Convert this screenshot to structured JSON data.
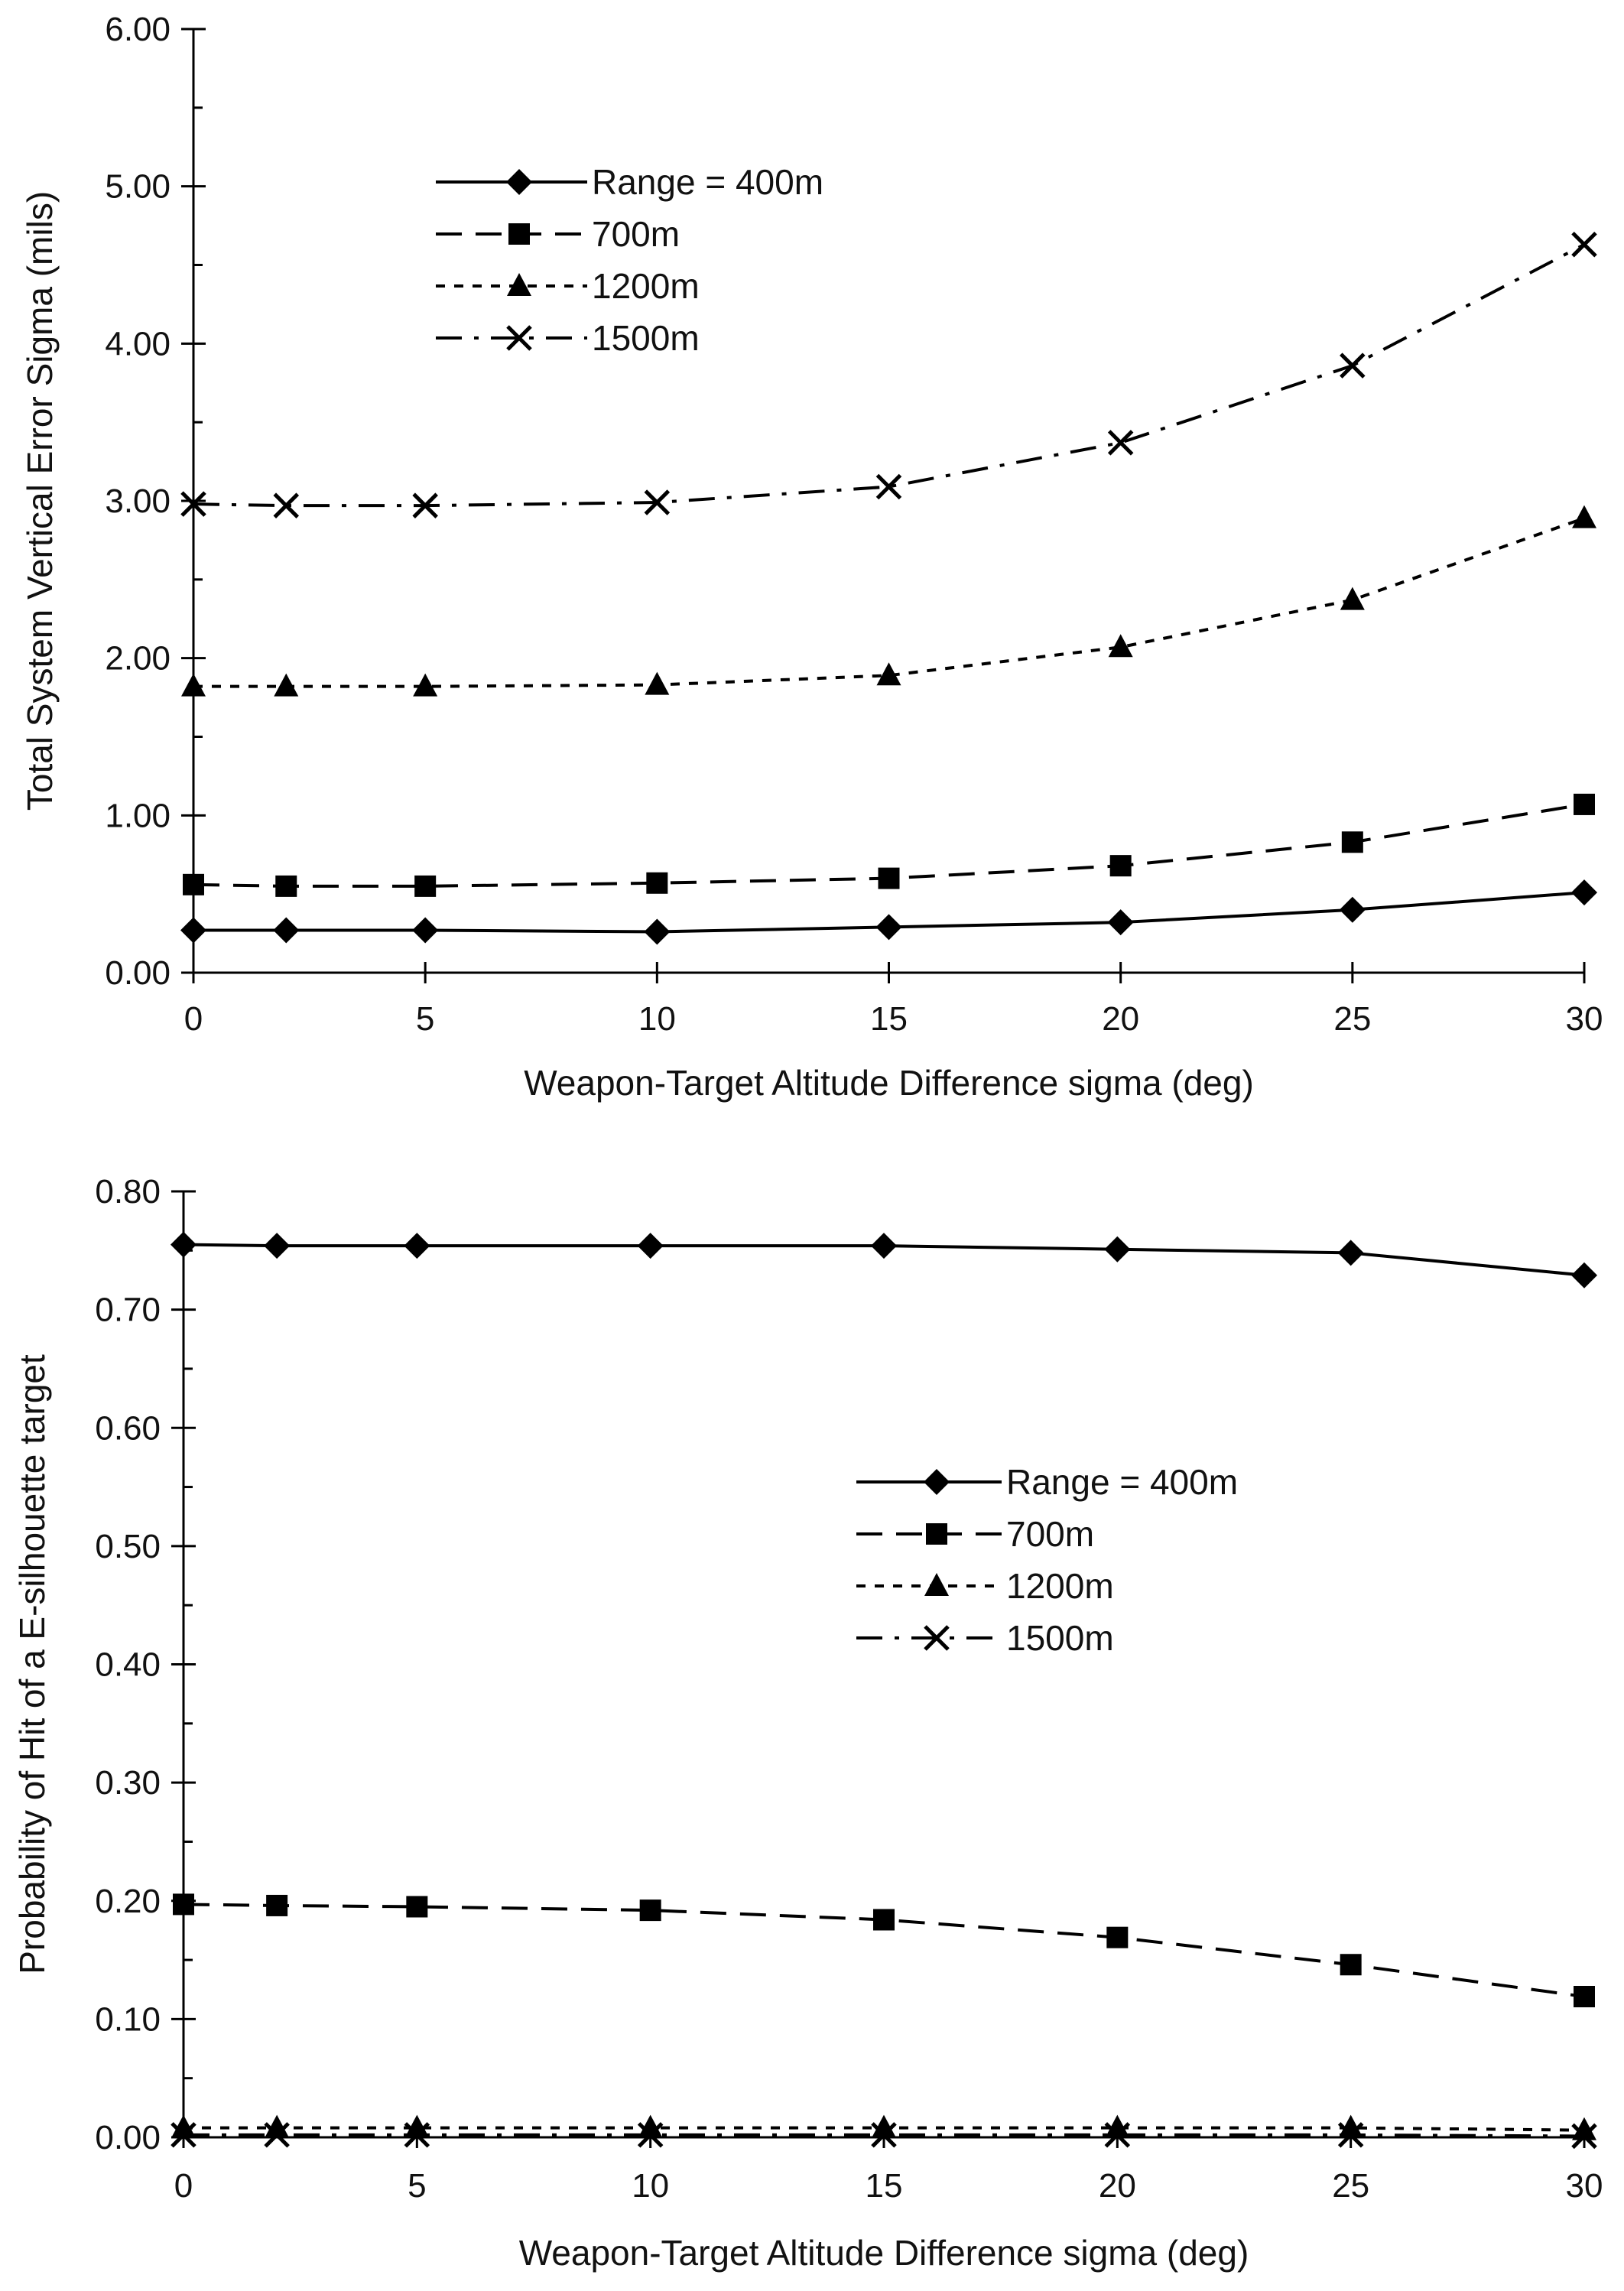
{
  "chart_data": [
    {
      "type": "line",
      "title": "",
      "xlabel": "Weapon-Target Altitude Difference sigma (deg)",
      "ylabel": "Total System Vertical Error Sigma (mils)",
      "x": [
        0,
        2,
        5,
        10,
        15,
        20,
        25,
        30
      ],
      "xticks": [
        "0",
        "5",
        "10",
        "15",
        "20",
        "25",
        "30"
      ],
      "yticks": [
        "0.00",
        "1.00",
        "2.00",
        "3.00",
        "4.00",
        "5.00",
        "6.00"
      ],
      "xlim": [
        0,
        30
      ],
      "ylim": [
        0,
        6
      ],
      "grid": false,
      "legend_position": "upper-left",
      "series": [
        {
          "name": "Range = 400m",
          "marker": "diamond",
          "dash": "solid",
          "values": [
            0.27,
            0.27,
            0.27,
            0.26,
            0.29,
            0.32,
            0.4,
            0.51
          ]
        },
        {
          "name": "700m",
          "marker": "square",
          "dash": "long-dash",
          "values": [
            0.56,
            0.55,
            0.55,
            0.57,
            0.6,
            0.68,
            0.83,
            1.07
          ]
        },
        {
          "name": "1200m",
          "marker": "triangle",
          "dash": "short-dash",
          "values": [
            1.82,
            1.82,
            1.82,
            1.83,
            1.89,
            2.07,
            2.37,
            2.89
          ]
        },
        {
          "name": "1500m",
          "marker": "x",
          "dash": "dash-dot",
          "values": [
            2.98,
            2.97,
            2.97,
            2.99,
            3.09,
            3.37,
            3.86,
            4.63
          ]
        }
      ]
    },
    {
      "type": "line",
      "title": "",
      "xlabel": "Weapon-Target Altitude Difference sigma (deg)",
      "ylabel": "Probability of Hit of a E-silhouette target",
      "x": [
        0,
        2,
        5,
        10,
        15,
        20,
        25,
        30
      ],
      "xticks": [
        "0",
        "5",
        "10",
        "15",
        "20",
        "25",
        "30"
      ],
      "yticks": [
        "0.00",
        "0.10",
        "0.20",
        "0.30",
        "0.40",
        "0.50",
        "0.60",
        "0.70",
        "0.80"
      ],
      "xlim": [
        0,
        30
      ],
      "ylim": [
        0,
        0.8
      ],
      "grid": false,
      "legend_position": "center-right",
      "series": [
        {
          "name": "Range = 400m",
          "marker": "diamond",
          "dash": "solid",
          "values": [
            0.755,
            0.754,
            0.754,
            0.754,
            0.754,
            0.751,
            0.748,
            0.729
          ]
        },
        {
          "name": "700m",
          "marker": "square",
          "dash": "long-dash",
          "values": [
            0.197,
            0.196,
            0.195,
            0.192,
            0.184,
            0.169,
            0.146,
            0.119
          ]
        },
        {
          "name": "1200m",
          "marker": "triangle",
          "dash": "short-dash",
          "values": [
            0.008,
            0.008,
            0.008,
            0.008,
            0.008,
            0.008,
            0.008,
            0.006
          ]
        },
        {
          "name": "1500m",
          "marker": "x",
          "dash": "dash-dot",
          "values": [
            0.002,
            0.002,
            0.002,
            0.002,
            0.002,
            0.002,
            0.002,
            0.001
          ]
        }
      ]
    }
  ]
}
